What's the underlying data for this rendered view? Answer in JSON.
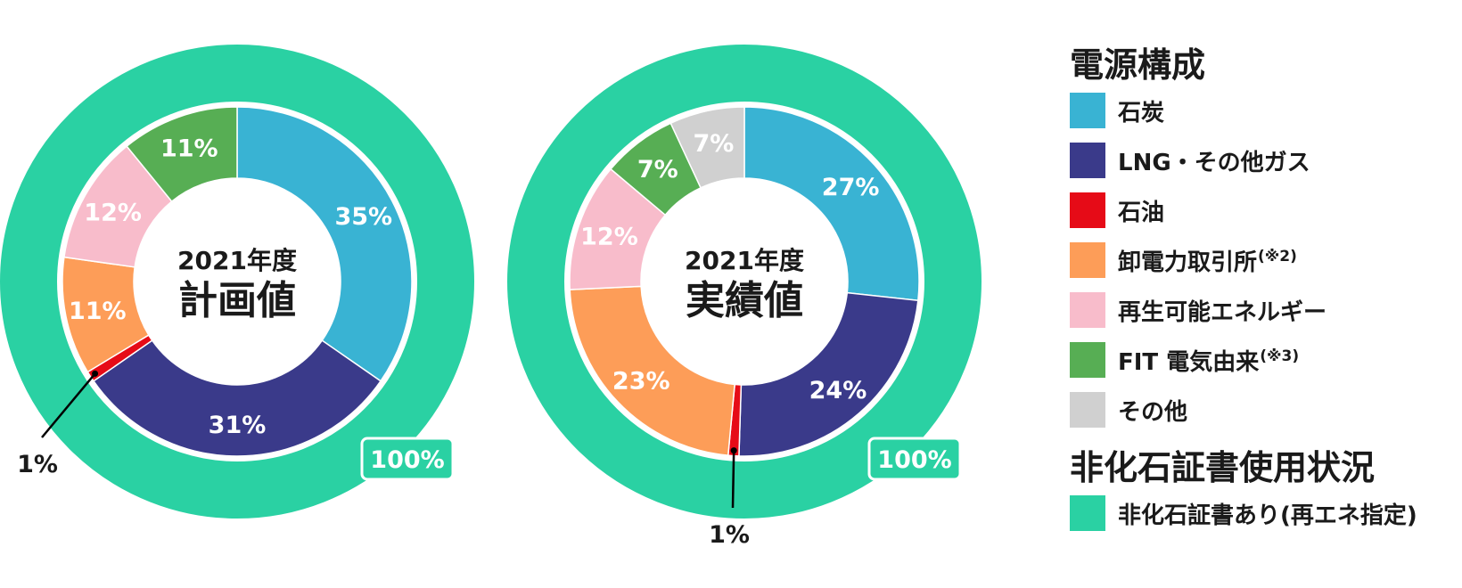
{
  "chart_data": [
    {
      "type": "pie",
      "title_year": "2021年度",
      "title_main": "計画値",
      "outer_label": "100%",
      "slices": [
        {
          "name": "石炭",
          "value": 35,
          "label": "35%"
        },
        {
          "name": "LNG・その他ガス",
          "value": 31,
          "label": "31%"
        },
        {
          "name": "石油",
          "value": 1,
          "label": "1%"
        },
        {
          "name": "卸電力取引所",
          "value": 11,
          "label": "11%"
        },
        {
          "name": "再生可能エネルギー",
          "value": 12,
          "label": "12%"
        },
        {
          "name": "FIT 電気由来",
          "value": 11,
          "label": "11%"
        }
      ]
    },
    {
      "type": "pie",
      "title_year": "2021年度",
      "title_main": "実績値",
      "outer_label": "100%",
      "slices": [
        {
          "name": "石炭",
          "value": 27,
          "label": "27%"
        },
        {
          "name": "LNG・その他ガス",
          "value": 24,
          "label": "24%"
        },
        {
          "name": "石油",
          "value": 1,
          "label": "1%"
        },
        {
          "name": "卸電力取引所",
          "value": 23,
          "label": "23%"
        },
        {
          "name": "再生可能エネルギー",
          "value": 12,
          "label": "12%"
        },
        {
          "name": "FIT 電気由来",
          "value": 7,
          "label": "7%"
        },
        {
          "name": "その他",
          "value": 7,
          "label": "7%"
        }
      ]
    }
  ],
  "legend": {
    "heading1": "電源構成",
    "items": [
      {
        "label": "石炭",
        "note": "",
        "color": "#39b3d3"
      },
      {
        "label": "LNG・その他ガス",
        "note": "",
        "color": "#3a3a8a"
      },
      {
        "label": "石油",
        "note": "",
        "color": "#e60b17"
      },
      {
        "label": "卸電力取引所",
        "note": "(※2)",
        "color": "#fd9d58"
      },
      {
        "label": "再生可能エネルギー",
        "note": "",
        "color": "#f8bccb"
      },
      {
        "label": "FIT 電気由来",
        "note": "(※3)",
        "color": "#57ae54"
      },
      {
        "label": "その他",
        "note": "",
        "color": "#d0d0d0"
      }
    ],
    "heading2": "非化石証書使用状況",
    "item2": {
      "label": "非化石証書あり(再エネ指定)",
      "color": "#2ad1a3"
    }
  },
  "colors": {
    "outer_ring": "#2ad1a3",
    "text_dark": "#1a1a1a",
    "label_light": "#ffffff"
  }
}
